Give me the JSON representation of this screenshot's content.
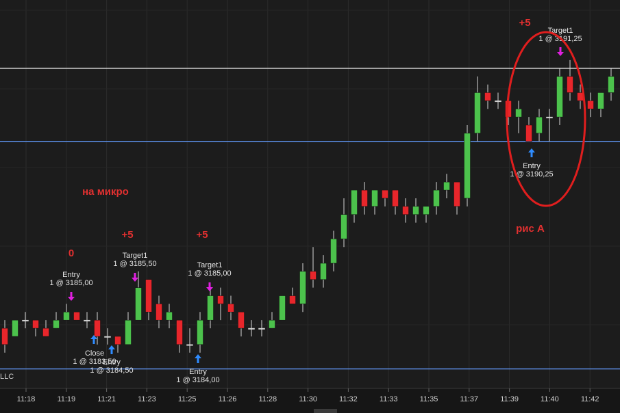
{
  "chart_data": {
    "type": "candlestick",
    "ylim": [
      3182.65,
      3194.6
    ],
    "up_color": "#4cc24c",
    "down_color": "#e8262b",
    "doji_color": "#d0d0d0",
    "open": [
      3184.5,
      3184.25,
      3184.75,
      3184.75,
      3184.5,
      3184.5,
      3184.75,
      3185.0,
      3184.75,
      3184.75,
      3184.25,
      3184.25,
      3184.0,
      3184.75,
      3186.0,
      3185.25,
      3184.75,
      3184.75,
      3184.0,
      3184.0,
      3184.75,
      3185.5,
      3185.25,
      3185.0,
      3184.5,
      3184.5,
      3184.5,
      3184.75,
      3185.5,
      3185.25,
      3186.25,
      3186.0,
      3186.5,
      3187.25,
      3188.0,
      3188.75,
      3188.25,
      3188.75,
      3188.75,
      3188.25,
      3188.0,
      3188.0,
      3188.25,
      3188.75,
      3189.0,
      3188.5,
      3190.5,
      3191.75,
      3191.5,
      3191.5,
      3191.0,
      3190.75,
      3190.5,
      3191.0,
      3191.0,
      3192.25,
      3191.75,
      3191.5,
      3191.25,
      3191.75
    ],
    "high": [
      3184.75,
      3184.75,
      3185.0,
      3184.75,
      3184.75,
      3185.0,
      3185.25,
      3185.0,
      3185.0,
      3185.0,
      3184.5,
      3184.25,
      3185.0,
      3186.25,
      3186.0,
      3185.5,
      3185.25,
      3184.75,
      3184.5,
      3185.0,
      3185.75,
      3185.75,
      3185.5,
      3185.0,
      3184.75,
      3184.75,
      3185.0,
      3185.5,
      3185.75,
      3186.5,
      3187.0,
      3186.75,
      3187.5,
      3188.5,
      3188.75,
      3189.0,
      3188.75,
      3188.75,
      3188.75,
      3188.5,
      3188.5,
      3188.25,
      3189.0,
      3189.25,
      3189.0,
      3190.75,
      3192.25,
      3192.0,
      3191.75,
      3191.75,
      3191.5,
      3191.0,
      3191.25,
      3191.25,
      3192.5,
      3192.75,
      3192.0,
      3191.75,
      3191.75,
      3192.5
    ],
    "low": [
      3183.75,
      3184.25,
      3184.5,
      3184.25,
      3184.25,
      3184.5,
      3184.75,
      3184.75,
      3184.5,
      3184.0,
      3184.0,
      3183.75,
      3184.0,
      3184.75,
      3184.75,
      3184.5,
      3184.5,
      3183.75,
      3183.75,
      3183.75,
      3184.5,
      3184.75,
      3184.75,
      3184.25,
      3184.25,
      3184.25,
      3184.5,
      3184.75,
      3185.25,
      3185.0,
      3185.75,
      3185.75,
      3186.25,
      3187.0,
      3187.75,
      3188.0,
      3188.0,
      3188.25,
      3188.0,
      3187.75,
      3187.75,
      3187.75,
      3188.0,
      3188.5,
      3188.0,
      3188.25,
      3190.25,
      3191.25,
      3191.25,
      3190.75,
      3190.5,
      3190.25,
      3190.25,
      3190.25,
      3190.75,
      3191.5,
      3191.25,
      3191.0,
      3191.0,
      3191.5
    ],
    "close": [
      3184.0,
      3184.75,
      3184.75,
      3184.5,
      3184.25,
      3184.75,
      3185.0,
      3184.75,
      3184.75,
      3184.25,
      3184.25,
      3184.0,
      3184.75,
      3185.75,
      3185.0,
      3184.75,
      3185.0,
      3184.0,
      3184.0,
      3184.75,
      3185.5,
      3185.25,
      3185.0,
      3184.5,
      3184.5,
      3184.5,
      3184.75,
      3185.5,
      3185.25,
      3186.25,
      3186.0,
      3186.5,
      3187.25,
      3188.0,
      3188.75,
      3188.25,
      3188.75,
      3188.5,
      3188.25,
      3188.0,
      3188.25,
      3188.25,
      3188.75,
      3189.0,
      3188.25,
      3190.5,
      3191.75,
      3191.5,
      3191.5,
      3191.0,
      3191.25,
      3190.25,
      3191.0,
      3191.0,
      3192.25,
      3191.75,
      3191.5,
      3191.25,
      3191.75,
      3192.25
    ],
    "levels": [
      3192.5,
      3190.25,
      3183.25
    ],
    "level_colors": [
      "#d8d8d8",
      "#5b8ee6",
      "#5b8ee6"
    ],
    "time_labels": [
      "11:18",
      "11:19",
      "11:21",
      "11:23",
      "11:25",
      "11:26",
      "11:28",
      "11:30",
      "11:32",
      "11:33",
      "11:35",
      "11:37",
      "11:39",
      "11:40",
      "11:42"
    ],
    "trade_labels": [
      [
        "Entry",
        "1 @ 3185,00"
      ],
      [
        "Target1",
        "1 @ 3185,50"
      ],
      [
        "Target1",
        "1 @ 3185,00"
      ],
      [
        "Close",
        "1 @ 3183,50"
      ],
      [
        "Entry",
        "1 @ 3184,50"
      ],
      [
        "Entry",
        "1 @ 3184,00"
      ],
      [
        "Target1",
        "1 @ 3191,25"
      ],
      [
        "Entry",
        "1 @ 3190,25"
      ]
    ],
    "notes": [
      "на микро",
      "0",
      "+5",
      "+5",
      "+5",
      "рис А"
    ],
    "watermark": "LLC"
  }
}
